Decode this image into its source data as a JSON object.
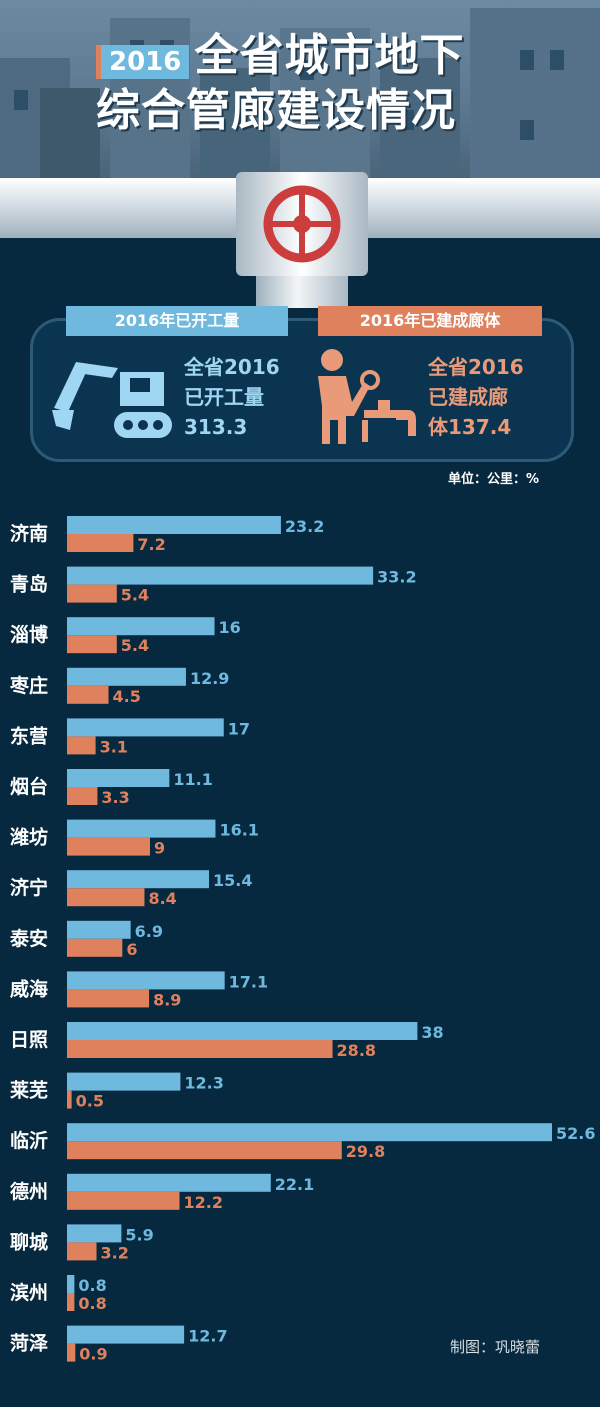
{
  "header": {
    "year_badge": "2016",
    "title_line1": "全省城市地下",
    "title_line2": "综合管廊建设情况"
  },
  "summary": {
    "left_pill": "2016年已开工量",
    "right_pill": "2016年已建成廊体",
    "left_lines": [
      "全省2016",
      "已开工量",
      "313.3"
    ],
    "right_lines": [
      "全省2016",
      "已建成廊",
      "体137.4"
    ]
  },
  "unit_label": "单位：公里：%",
  "credit": "制图：巩晓蕾",
  "colors": {
    "background": "#07293f",
    "started": "#6fb8de",
    "completed": "#e0815e"
  },
  "icons": [
    "excavator-icon",
    "worker-pipe-icon",
    "valve-wheel-icon"
  ],
  "chart_data": {
    "type": "bar",
    "orientation": "horizontal",
    "categories": [
      "济南",
      "青岛",
      "淄博",
      "枣庄",
      "东营",
      "烟台",
      "潍坊",
      "济宁",
      "泰安",
      "威海",
      "日照",
      "莱芜",
      "临沂",
      "德州",
      "聊城",
      "滨州",
      "菏泽"
    ],
    "series": [
      {
        "name": "2016年已开工量",
        "color": "#6fb8de",
        "values": [
          23.2,
          33.2,
          16,
          12.9,
          17,
          11.1,
          16.1,
          15.4,
          6.9,
          17.1,
          38,
          12.3,
          52.6,
          22.1,
          5.9,
          0.8,
          12.7
        ],
        "labels": [
          "23.2",
          "33.2",
          "16",
          "12.9",
          "17",
          "11.1",
          "16.1",
          "15.4",
          "6.9",
          "17.1",
          "38",
          "12.3",
          "52.6",
          "22.1",
          "5.9",
          "0.8",
          "12.7"
        ]
      },
      {
        "name": "2016年已建成廊体",
        "color": "#e0815e",
        "values": [
          7.2,
          5.4,
          5.4,
          4.5,
          3.1,
          3.3,
          9,
          8.4,
          6,
          8.9,
          28.8,
          0.5,
          29.8,
          12.2,
          3.2,
          0.8,
          0.9
        ],
        "labels": [
          "7.2",
          "5.4",
          "5.4",
          "4.5",
          "3.1",
          "3.3",
          "9",
          "8.4",
          "6",
          "8.9",
          "28.8",
          "0.5",
          "29.8",
          "12.2",
          "3.2",
          "0.8",
          "0.9"
        ]
      }
    ],
    "xlim": [
      0,
      52.6
    ],
    "grid": false,
    "legend": "top"
  }
}
